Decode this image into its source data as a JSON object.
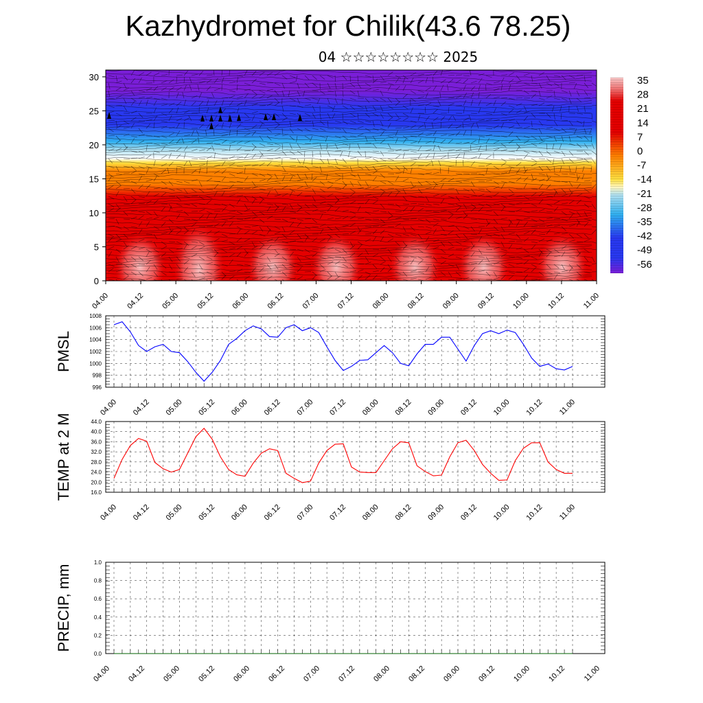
{
  "title": "Kazhydromet for Chilik(43.6 78.25)",
  "subtitle": "04 ☆☆☆☆☆☆☆☆ 2025",
  "chart_data": [
    {
      "type": "heatmap",
      "name": "cross-section",
      "x_ticks": [
        "04.00",
        "04.12",
        "05.00",
        "05.12",
        "06.00",
        "06.12",
        "07.00",
        "07.12",
        "08.00",
        "08.12",
        "09.00",
        "09.12",
        "10.00",
        "10.12",
        "11.00"
      ],
      "y_ticks": [
        "0",
        "5",
        "10",
        "15",
        "20",
        "25",
        "30"
      ],
      "ylim": [
        0,
        31
      ],
      "colorbar_labels": [
        "35",
        "28",
        "21",
        "14",
        "7",
        "0",
        "-7",
        "-14",
        "-21",
        "-28",
        "-35",
        "-42",
        "-49",
        "-56"
      ],
      "colors": {
        "max": "#f8c8c8",
        "warm": "#e40000",
        "orange": "#ff8000",
        "yellow": "#ffe040",
        "cyan": "#30b0f0",
        "blue": "#2838f0",
        "violet": "#7a1ed8"
      }
    },
    {
      "type": "line",
      "name": "pmsl",
      "ylabel": "PMSL",
      "x_ticks": [
        "04.00",
        "04.12",
        "05.00",
        "05.12",
        "06.00",
        "06.12",
        "07.00",
        "07.12",
        "08.00",
        "08.12",
        "09.00",
        "09.12",
        "10.00",
        "10.12",
        "11.00"
      ],
      "y_ticks": [
        "996",
        "998",
        "1000",
        "1002",
        "1004",
        "1006",
        "1008"
      ],
      "ylim": [
        996,
        1008
      ],
      "color": "#0000ff",
      "values": [
        1006.5,
        1007.0,
        1005.3,
        1003.0,
        1002.0,
        1002.8,
        1003.2,
        1002.0,
        1001.8,
        1000.3,
        998.5,
        997.0,
        998.5,
        1000.5,
        1003.2,
        1004.2,
        1005.5,
        1006.3,
        1005.8,
        1004.5,
        1004.4,
        1006.0,
        1006.5,
        1005.5,
        1006.0,
        1005.2,
        1002.8,
        1000.5,
        998.8,
        999.5,
        1000.5,
        1000.6,
        1001.8,
        1003.0,
        1001.8,
        1000.0,
        999.6,
        1001.6,
        1003.2,
        1003.2,
        1004.4,
        1004.4,
        1002.4,
        1000.4,
        1003.0,
        1005.0,
        1005.5,
        1005.0,
        1005.6,
        1005.2,
        1003.2,
        1000.9,
        999.5,
        999.9,
        999.1,
        998.9,
        999.5
      ]
    },
    {
      "type": "line",
      "name": "temp",
      "ylabel": "TEMP at 2 M",
      "x_ticks": [
        "04.00",
        "04.12",
        "05.00",
        "05.12",
        "06.00",
        "06.12",
        "07.00",
        "07.12",
        "08.00",
        "08.12",
        "09.00",
        "09.12",
        "10.00",
        "10.12",
        "11.00"
      ],
      "y_ticks": [
        "16.0",
        "20.0",
        "24.0",
        "28.0",
        "32.0",
        "36.0",
        "40.0",
        "44.0"
      ],
      "ylim": [
        16,
        44
      ],
      "color": "#ff0000",
      "values": [
        21.5,
        29.0,
        34.5,
        37.3,
        36.2,
        27.8,
        25.3,
        24.0,
        25.0,
        31.5,
        38.0,
        41.3,
        37.0,
        30.0,
        25.0,
        22.9,
        22.3,
        27.5,
        31.5,
        33.2,
        32.5,
        23.5,
        21.5,
        19.8,
        20.4,
        27.5,
        32.5,
        35.0,
        35.2,
        26.0,
        24.0,
        23.8,
        23.8,
        28.5,
        33.2,
        36.0,
        35.6,
        26.5,
        24.2,
        22.5,
        22.8,
        30.0,
        35.6,
        36.6,
        32.5,
        27.0,
        23.5,
        20.7,
        20.9,
        28.5,
        33.4,
        35.6,
        35.6,
        28.0,
        25.0,
        23.5,
        23.5
      ]
    },
    {
      "type": "line",
      "name": "precip",
      "ylabel": "PRECIP, mm",
      "x_ticks": [
        "04.00",
        "04.12",
        "05.00",
        "05.12",
        "06.00",
        "06.12",
        "07.00",
        "07.12",
        "08.00",
        "08.12",
        "09.00",
        "09.12",
        "10.00",
        "10.12",
        "11.00"
      ],
      "y_ticks": [
        "0.0",
        "0.2",
        "0.4",
        "0.6",
        "0.8",
        "1.0"
      ],
      "ylim": [
        0,
        1
      ],
      "color": "#006000",
      "values": [
        0,
        0,
        0,
        0,
        0,
        0,
        0,
        0,
        0,
        0,
        0,
        0,
        0,
        0,
        0,
        0,
        0,
        0,
        0,
        0,
        0,
        0,
        0,
        0,
        0,
        0,
        0,
        0,
        0,
        0,
        0,
        0,
        0,
        0,
        0,
        0,
        0,
        0,
        0,
        0,
        0,
        0,
        0,
        0,
        0,
        0,
        0,
        0,
        0,
        0,
        0,
        0,
        0,
        0,
        0,
        0,
        0
      ]
    }
  ]
}
